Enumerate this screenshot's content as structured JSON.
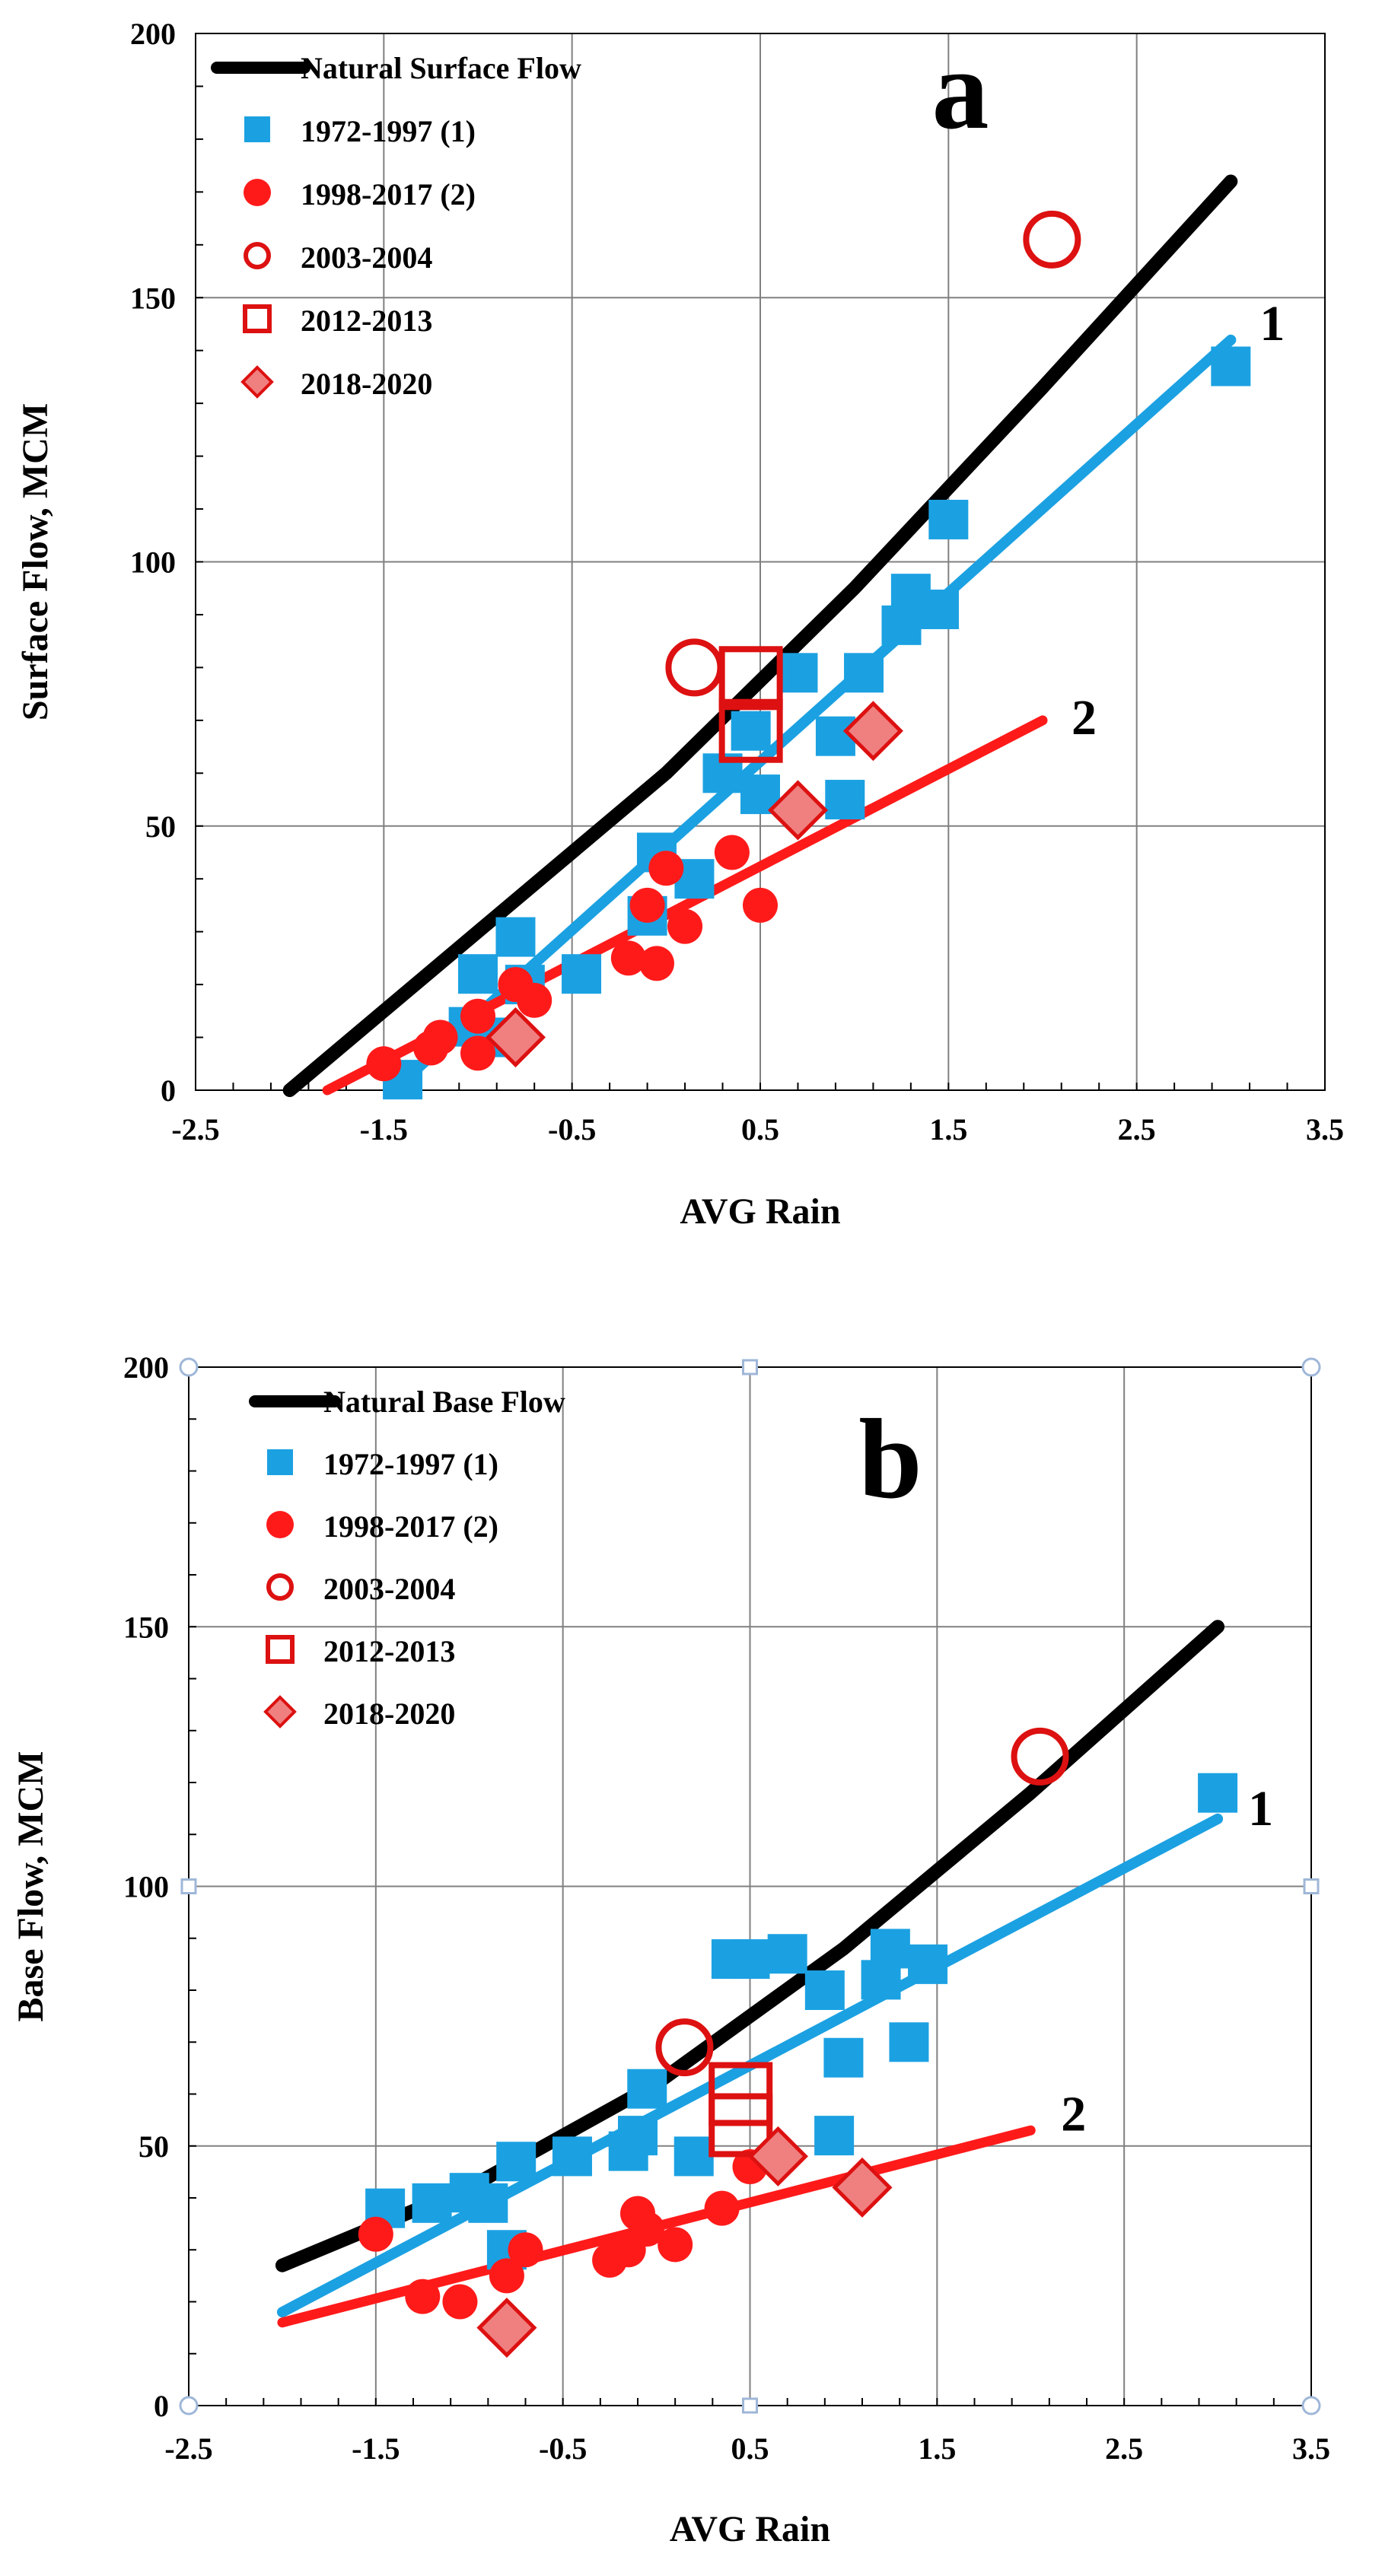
{
  "colors": {
    "natural": "#000000",
    "period1": "#1BA1E2",
    "period2": "#FF1A1A",
    "special": "#DD1111",
    "special_fill": "#F08080",
    "handle": "#9FB7D8"
  },
  "chart_data": [
    {
      "type": "scatter",
      "panel_letter": "a",
      "xlabel": "AVG Rain",
      "ylabel": "Surface Flow,  MCM",
      "xlim": [
        -2.5,
        3.5
      ],
      "ylim": [
        0,
        200
      ],
      "x_ticks": [
        -2.5,
        -1.5,
        -0.5,
        0.5,
        1.5,
        2.5,
        3.5
      ],
      "y_ticks": [
        0,
        50,
        100,
        150,
        200
      ],
      "x_tick_labels": [
        "-2.5",
        "-1.5",
        "-0.5",
        "0.5",
        "1.5",
        "2.5",
        "3.5"
      ],
      "y_tick_labels": [
        "0",
        "50",
        "100",
        "150",
        "200"
      ],
      "grid": true,
      "legend_position": "top-left",
      "legend": [
        {
          "label": "Natural Surface Flow",
          "marker": "line"
        },
        {
          "label": "1972-1997 (1)",
          "marker": "square"
        },
        {
          "label": "1998-2017 (2)",
          "marker": "circle"
        },
        {
          "label": "2003-2004",
          "marker": "open-circle"
        },
        {
          "label": "2012-2013",
          "marker": "open-square"
        },
        {
          "label": "2018-2020",
          "marker": "diamond"
        }
      ],
      "lines": [
        {
          "name": "Natural Surface Flow",
          "x": [
            -2.0,
            -1.0,
            0.0,
            1.0,
            2.0,
            3.0
          ],
          "y": [
            0,
            30,
            60,
            95,
            133,
            172
          ]
        },
        {
          "name": "1972-1997 (1) fit",
          "label": "1",
          "x": [
            -1.45,
            3.0
          ],
          "y": [
            0,
            142
          ]
        },
        {
          "name": "1998-2017 (2) fit",
          "label": "2",
          "x": [
            -1.8,
            2.0
          ],
          "y": [
            0,
            70
          ]
        }
      ],
      "series": [
        {
          "name": "1972-1997 (1)",
          "marker": "square",
          "points": [
            [
              -1.4,
              2
            ],
            [
              -1.0,
              22
            ],
            [
              -1.05,
              12
            ],
            [
              -0.9,
              10
            ],
            [
              -0.8,
              29
            ],
            [
              -0.75,
              20
            ],
            [
              -0.45,
              22
            ],
            [
              -0.05,
              45
            ],
            [
              -0.1,
              33
            ],
            [
              0.15,
              40
            ],
            [
              0.3,
              60
            ],
            [
              0.45,
              68
            ],
            [
              0.5,
              56
            ],
            [
              0.7,
              79
            ],
            [
              0.9,
              67
            ],
            [
              0.95,
              55
            ],
            [
              1.05,
              79
            ],
            [
              1.25,
              88
            ],
            [
              1.3,
              94
            ],
            [
              1.45,
              91
            ],
            [
              1.5,
              108
            ],
            [
              3.0,
              137
            ]
          ]
        },
        {
          "name": "1998-2017 (2)",
          "marker": "circle",
          "points": [
            [
              -1.5,
              5
            ],
            [
              -1.2,
              10
            ],
            [
              -1.25,
              8
            ],
            [
              -1.0,
              14
            ],
            [
              -1.0,
              7
            ],
            [
              -0.8,
              20
            ],
            [
              -0.7,
              17
            ],
            [
              -0.2,
              25
            ],
            [
              -0.1,
              35
            ],
            [
              -0.05,
              24
            ],
            [
              0.0,
              42
            ],
            [
              0.1,
              31
            ],
            [
              0.35,
              45
            ],
            [
              0.5,
              35
            ]
          ]
        },
        {
          "name": "2003-2004",
          "marker": "open-circle",
          "points": [
            [
              0.15,
              80
            ],
            [
              2.05,
              161
            ]
          ]
        },
        {
          "name": "2012-2013",
          "marker": "open-square",
          "points": [
            [
              0.45,
              78
            ],
            [
              0.45,
              68
            ]
          ]
        },
        {
          "name": "2018-2020",
          "marker": "diamond",
          "points": [
            [
              -0.8,
              10
            ],
            [
              0.7,
              53
            ],
            [
              1.1,
              68
            ]
          ]
        }
      ]
    },
    {
      "type": "scatter",
      "panel_letter": "b",
      "xlabel": "AVG Rain",
      "ylabel": "Base Flow,  MCM",
      "xlim": [
        -2.5,
        3.5
      ],
      "ylim": [
        0,
        200
      ],
      "x_ticks": [
        -2.5,
        -1.5,
        -0.5,
        0.5,
        1.5,
        2.5,
        3.5
      ],
      "y_ticks": [
        0,
        50,
        100,
        150,
        200
      ],
      "x_tick_labels": [
        "-2.5",
        "-1.5",
        "-0.5",
        "0.5",
        "1.5",
        "2.5",
        "3.5"
      ],
      "y_tick_labels": [
        "0",
        "50",
        "100",
        "150",
        "200"
      ],
      "grid": true,
      "legend_position": "top-left",
      "legend": [
        {
          "label": "Natural Base Flow",
          "marker": "line"
        },
        {
          "label": "1972-1997 (1)",
          "marker": "square"
        },
        {
          "label": "1998-2017 (2)",
          "marker": "circle"
        },
        {
          "label": "2003-2004",
          "marker": "open-circle"
        },
        {
          "label": "2012-2013",
          "marker": "open-square"
        },
        {
          "label": "2018-2020",
          "marker": "diamond"
        }
      ],
      "lines": [
        {
          "name": "Natural Base Flow",
          "x": [
            -2.0,
            -1.0,
            0.0,
            1.0,
            2.0,
            3.0
          ],
          "y": [
            27,
            42,
            62,
            88,
            118,
            150
          ]
        },
        {
          "name": "1972-1997 (1) fit",
          "label": "1",
          "x": [
            -2.0,
            3.0
          ],
          "y": [
            18,
            113
          ]
        },
        {
          "name": "1998-2017 (2) fit",
          "label": "2",
          "x": [
            -2.0,
            2.0
          ],
          "y": [
            16,
            53
          ]
        }
      ],
      "series": [
        {
          "name": "1972-1997 (1)",
          "marker": "square",
          "points": [
            [
              -1.45,
              38
            ],
            [
              -1.2,
              39
            ],
            [
              -1.0,
              41
            ],
            [
              -0.9,
              39
            ],
            [
              -0.75,
              47
            ],
            [
              -0.8,
              30
            ],
            [
              -0.45,
              48
            ],
            [
              -0.15,
              49
            ],
            [
              -0.1,
              52
            ],
            [
              -0.05,
              61
            ],
            [
              0.2,
              48
            ],
            [
              0.4,
              86
            ],
            [
              0.5,
              86
            ],
            [
              0.7,
              87
            ],
            [
              0.9,
              80
            ],
            [
              0.95,
              52
            ],
            [
              1.0,
              67
            ],
            [
              1.2,
              82
            ],
            [
              1.25,
              88
            ],
            [
              1.35,
              70
            ],
            [
              1.45,
              85
            ],
            [
              3.0,
              118
            ]
          ]
        },
        {
          "name": "1998-2017 (2)",
          "marker": "circle",
          "points": [
            [
              -1.5,
              33
            ],
            [
              -1.25,
              21
            ],
            [
              -1.05,
              20
            ],
            [
              -0.8,
              25
            ],
            [
              -0.7,
              30
            ],
            [
              -0.25,
              28
            ],
            [
              -0.15,
              30
            ],
            [
              -0.1,
              37
            ],
            [
              -0.05,
              34
            ],
            [
              0.1,
              31
            ],
            [
              0.35,
              38
            ],
            [
              0.5,
              46
            ]
          ]
        },
        {
          "name": "2003-2004",
          "marker": "open-circle",
          "points": [
            [
              0.15,
              69
            ],
            [
              2.05,
              125
            ]
          ]
        },
        {
          "name": "2012-2013",
          "marker": "open-square",
          "points": [
            [
              0.45,
              60
            ],
            [
              0.45,
              54
            ]
          ]
        },
        {
          "name": "2018-2020",
          "marker": "diamond",
          "points": [
            [
              -0.8,
              15
            ],
            [
              0.65,
              48
            ],
            [
              1.1,
              42
            ]
          ]
        }
      ]
    }
  ]
}
